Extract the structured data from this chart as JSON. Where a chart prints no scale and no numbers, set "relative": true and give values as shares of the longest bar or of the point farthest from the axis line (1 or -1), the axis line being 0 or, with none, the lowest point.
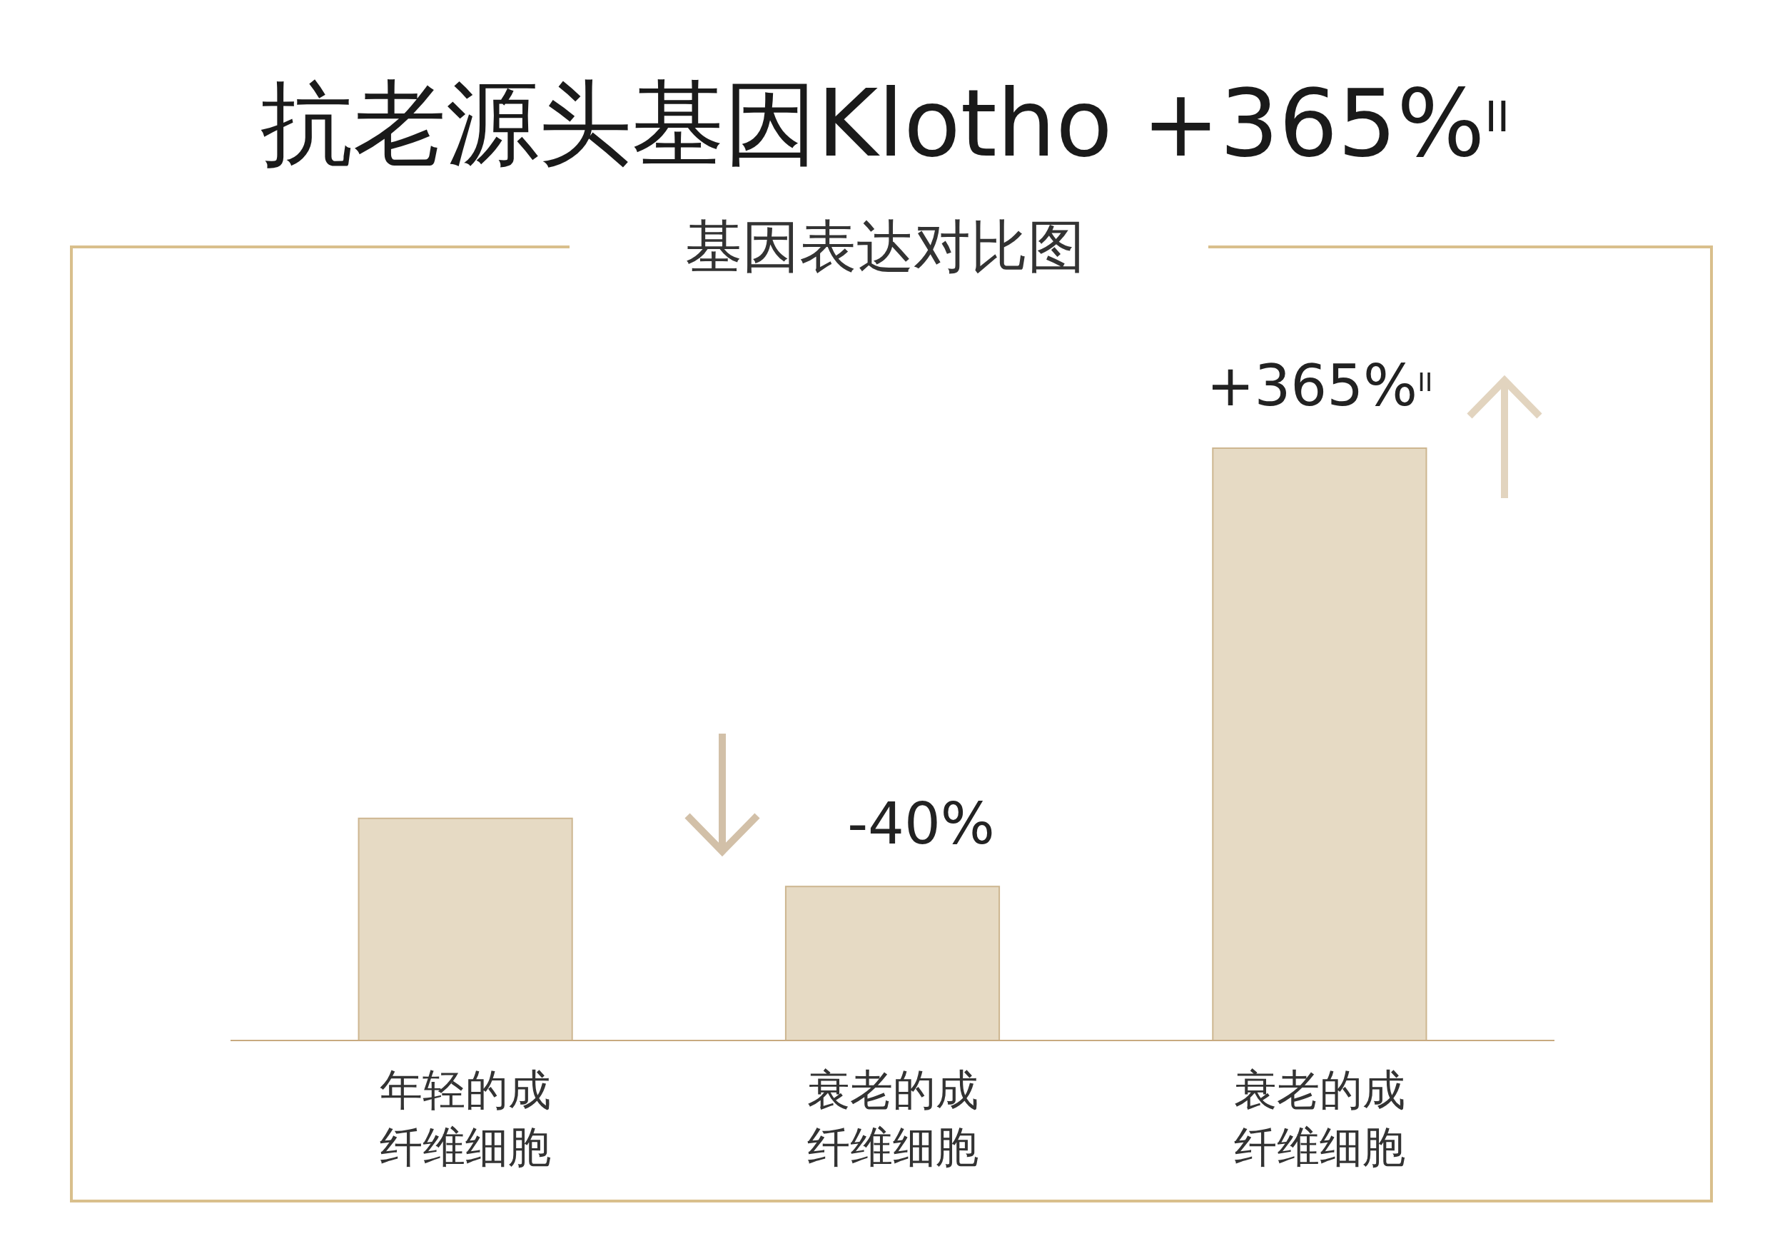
{
  "chart_data": {
    "type": "bar",
    "title": "抗老源头基因Klotho +365%$^{II}$",
    "subtitle": "基因表达对比图",
    "categories": [
      "年轻的成纤维细胞",
      "衰老的成纤维细胞",
      "衰老的成纤维细胞"
    ],
    "values": [
      0.375,
      0.26,
      1
    ],
    "color": "#e6dac4",
    "relative": true,
    "annotations": [
      "-40%",
      "+365%$^{II}$"
    ]
  }
}
